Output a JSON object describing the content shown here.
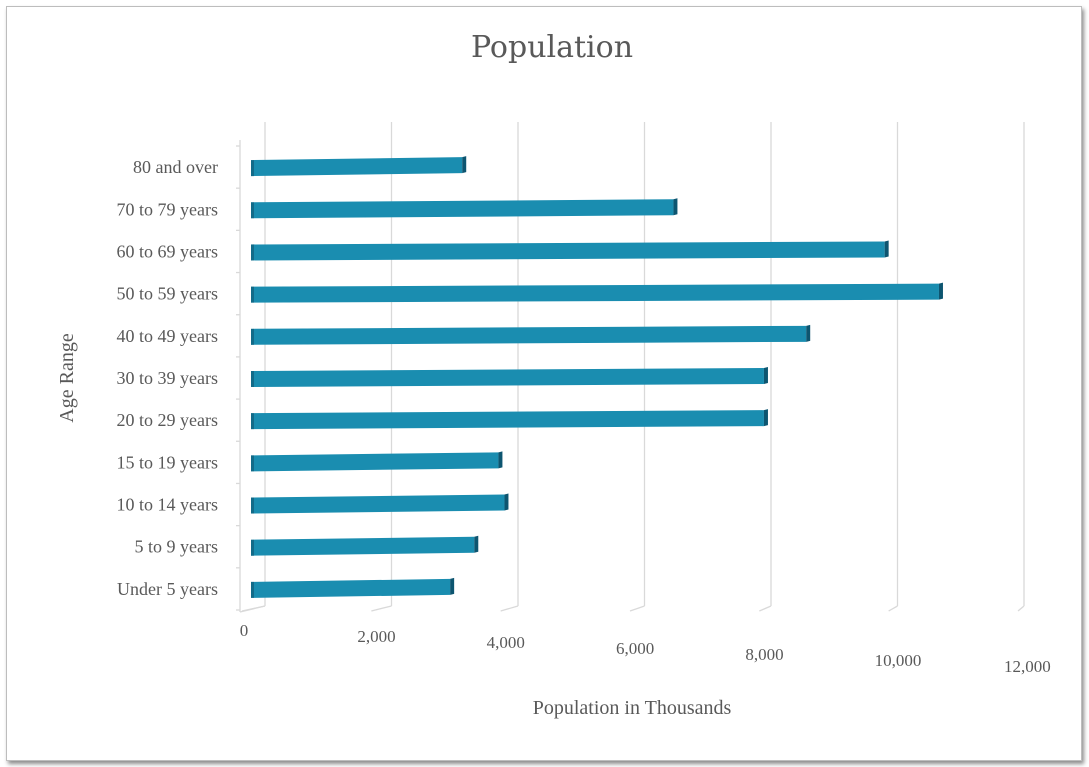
{
  "chart_data": {
    "type": "bar",
    "orientation": "horizontal",
    "style": "3d-clustered-bar",
    "title": "Population",
    "xlabel": "Population in Thousands",
    "ylabel": "Age Range",
    "categories": [
      "Under 5 years",
      "5 to 9 years",
      "10 to 14 years",
      "15 to 19 years",
      "20 to 29 years",
      "30 to 39 years",
      "40 to 49 years",
      "50 to 59 years",
      "60 to 69 years",
      "70 to 79 years",
      "80 and over"
    ],
    "values": [
      3300,
      3700,
      4200,
      4100,
      8500,
      8500,
      9200,
      11400,
      10500,
      7000,
      3500
    ],
    "xlim": [
      0,
      12000
    ],
    "xticks": [
      0,
      2000,
      4000,
      6000,
      8000,
      10000,
      12000
    ],
    "xtick_labels": [
      "0",
      "2,000",
      "4,000",
      "6,000",
      "8,000",
      "10,000",
      "12,000"
    ],
    "grid": true,
    "legend": "none",
    "bar_color": "#1a8db0",
    "bar_top_color": "#1f9cc0",
    "bar_side_color": "#0d5570"
  }
}
